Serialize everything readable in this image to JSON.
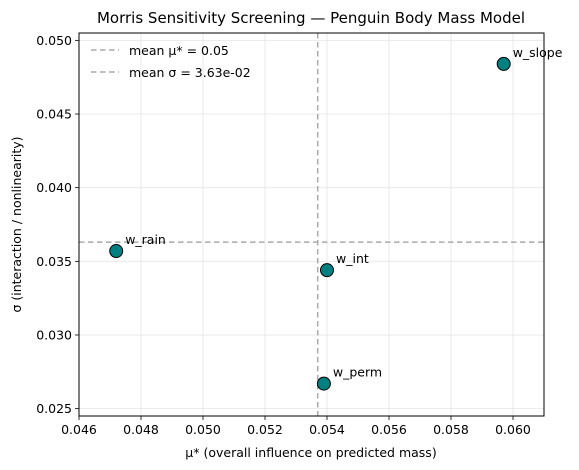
{
  "chart_data": {
    "type": "scatter",
    "title": "Morris Sensitivity Screening — Penguin Body Mass Model",
    "xlabel": "μ* (overall influence on predicted mass)",
    "ylabel": "σ (interaction / nonlinearity)",
    "xlim": [
      0.046,
      0.061
    ],
    "ylim": [
      0.0245,
      0.0505
    ],
    "xticks": [
      0.046,
      0.048,
      0.05,
      0.052,
      0.054,
      0.056,
      0.058,
      0.06
    ],
    "xtick_labels": [
      "0.046",
      "0.048",
      "0.050",
      "0.052",
      "0.054",
      "0.056",
      "0.058",
      "0.060"
    ],
    "yticks": [
      0.025,
      0.03,
      0.035,
      0.04,
      0.045,
      0.05
    ],
    "ytick_labels": [
      "0.025",
      "0.030",
      "0.035",
      "0.040",
      "0.045",
      "0.050"
    ],
    "grid": true,
    "legend_position": "top-left",
    "points": [
      {
        "label": "w_slope",
        "x": 0.0597,
        "y": 0.0484
      },
      {
        "label": "w_rain",
        "x": 0.0472,
        "y": 0.0357
      },
      {
        "label": "w_int",
        "x": 0.054,
        "y": 0.0344
      },
      {
        "label": "w_perm",
        "x": 0.0539,
        "y": 0.0267
      }
    ],
    "reference_lines": [
      {
        "orientation": "vertical",
        "value": 0.0537,
        "legend": "mean μ* = 0.05"
      },
      {
        "orientation": "horizontal",
        "value": 0.0363,
        "legend": "mean σ = 3.63e-02"
      }
    ],
    "colors": {
      "marker_fill": "#008080",
      "marker_edge": "#000000",
      "reference_line": "#aaaaaa",
      "grid": "#e5e5e5"
    }
  }
}
